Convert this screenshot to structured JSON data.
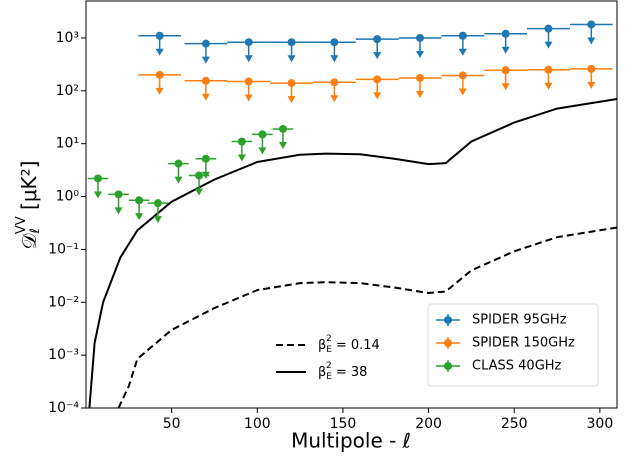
{
  "chart_data": {
    "type": "errorbar",
    "xlabel": "Multipole - ℓ",
    "ylabel": {
      "symbol": "𝒟",
      "sub": "ℓ",
      "sup": "VV",
      "unit": " [μK²]"
    },
    "xlim": [
      0,
      310
    ],
    "xticks": [
      50,
      100,
      150,
      200,
      250,
      300
    ],
    "ylim": [
      0.0001,
      5000
    ],
    "yscale": "log",
    "yticks": [
      {
        "value": 0.0001,
        "label": "10⁻⁴"
      },
      {
        "value": 0.001,
        "label": "10⁻³"
      },
      {
        "value": 0.01,
        "label": "10⁻²"
      },
      {
        "value": 0.1,
        "label": "10⁻¹"
      },
      {
        "value": 1,
        "label": "10⁰"
      },
      {
        "value": 10,
        "label": "10¹"
      },
      {
        "value": 100,
        "label": "10²"
      },
      {
        "value": 1000,
        "label": "10³"
      }
    ],
    "upper_limits": true,
    "legend_position": "lower right",
    "series": [
      {
        "name": "SPIDER 95GHz",
        "color": "#1f77b4",
        "x": [
          43,
          70,
          95,
          120,
          145,
          170,
          195,
          220,
          245,
          270,
          295
        ],
        "xerr": [
          12.5,
          12.5,
          12.5,
          12.5,
          12.5,
          12.5,
          12.5,
          12.5,
          12.5,
          12.5,
          12.5
        ],
        "values": [
          1100,
          780,
          830,
          830,
          830,
          950,
          1000,
          1100,
          1200,
          1500,
          1800
        ]
      },
      {
        "name": "SPIDER 150GHz",
        "color": "#ff7f0e",
        "x": [
          43,
          70,
          95,
          120,
          145,
          170,
          195,
          220,
          245,
          270,
          295
        ],
        "xerr": [
          12.5,
          12.5,
          12.5,
          12.5,
          12.5,
          12.5,
          12.5,
          12.5,
          12.5,
          12.5,
          12.5
        ],
        "values": [
          200,
          155,
          150,
          140,
          145,
          165,
          175,
          195,
          245,
          250,
          260
        ]
      },
      {
        "name": "CLASS 40GHz",
        "color": "#2ca02c",
        "x": [
          7,
          19,
          31,
          42,
          54,
          66,
          70,
          91,
          103,
          115
        ],
        "xerr": [
          6,
          6,
          6,
          6,
          6,
          6,
          6,
          6,
          6,
          6
        ],
        "values": [
          2.2,
          1.1,
          0.85,
          0.75,
          4.2,
          2.5,
          5.2,
          11,
          15,
          19
        ]
      }
    ],
    "lines": [
      {
        "name": [
          "β",
          "E",
          "2",
          " = 0.14"
        ],
        "color": "#000000",
        "dash": true,
        "x": [
          19,
          25,
          30,
          50,
          75,
          100,
          125,
          140,
          160,
          180,
          200,
          210,
          225,
          250,
          275,
          310
        ],
        "values": [
          0.0001,
          0.00026,
          0.00085,
          0.003,
          0.0078,
          0.017,
          0.023,
          0.024,
          0.023,
          0.019,
          0.015,
          0.016,
          0.04,
          0.092,
          0.17,
          0.26
        ]
      },
      {
        "name": [
          "β",
          "E",
          "2",
          " = 38"
        ],
        "color": "#000000",
        "dash": false,
        "x": [
          2,
          5,
          10,
          20,
          30,
          50,
          75,
          100,
          125,
          140,
          160,
          180,
          200,
          210,
          225,
          250,
          275,
          310
        ],
        "values": [
          0.0001,
          0.0017,
          0.01,
          0.07,
          0.23,
          0.8,
          2.1,
          4.5,
          6.2,
          6.5,
          6.3,
          5.2,
          4.1,
          4.3,
          11,
          25,
          46,
          70
        ]
      }
    ]
  }
}
